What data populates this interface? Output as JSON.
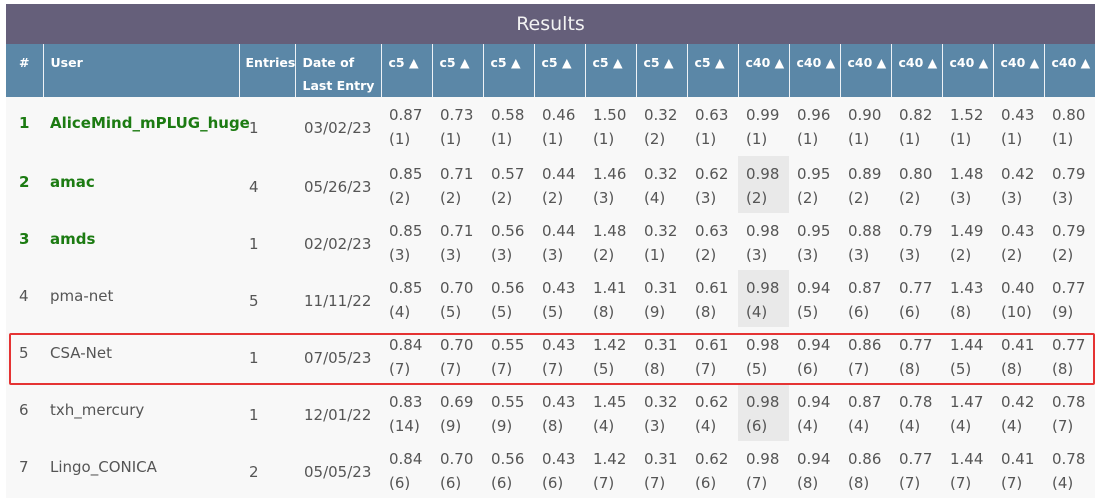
{
  "title": "Results",
  "columns": [
    "#",
    "User",
    "Entries",
    "Date of Last Entry",
    "c5 ▲",
    "c5 ▲",
    "c5 ▲",
    "c5 ▲",
    "c5 ▲",
    "c5 ▲",
    "c5 ▲",
    "c40 ▲",
    "c40 ▲",
    "c40 ▲",
    "c40 ▲",
    "c40 ▲",
    "c40 ▲",
    "c40 ▲"
  ],
  "header": {
    "rank": "#",
    "user": "User",
    "entries": "Entries",
    "date": "Date of Last Entry",
    "metrics": [
      "c5 ▲",
      "c5 ▲",
      "c5 ▲",
      "c5 ▲",
      "c5 ▲",
      "c5 ▲",
      "c5 ▲",
      "c40 ▲",
      "c40 ▲",
      "c40 ▲",
      "c40 ▲",
      "c40 ▲",
      "c40 ▲",
      "c40 ▲"
    ]
  },
  "rows": [
    {
      "rank": "1",
      "user": "AliceMind_mPLUG_huge",
      "entries": "1",
      "date": "03/02/23",
      "top": true,
      "highlight_col": null,
      "scores": [
        "0.87",
        "0.73",
        "0.58",
        "0.46",
        "1.50",
        "0.32",
        "0.63",
        "0.99",
        "0.96",
        "0.90",
        "0.82",
        "1.52",
        "0.43",
        "0.80"
      ],
      "ranks": [
        "(1)",
        "(1)",
        "(1)",
        "(1)",
        "(1)",
        "(2)",
        "(1)",
        "(1)",
        "(1)",
        "(1)",
        "(1)",
        "(1)",
        "(1)",
        "(1)"
      ]
    },
    {
      "rank": "2",
      "user": "amac",
      "entries": "4",
      "date": "05/26/23",
      "top": true,
      "highlight_col": 7,
      "scores": [
        "0.85",
        "0.71",
        "0.57",
        "0.44",
        "1.46",
        "0.32",
        "0.62",
        "0.98",
        "0.95",
        "0.89",
        "0.80",
        "1.48",
        "0.42",
        "0.79"
      ],
      "ranks": [
        "(2)",
        "(2)",
        "(2)",
        "(2)",
        "(3)",
        "(4)",
        "(3)",
        "(2)",
        "(2)",
        "(2)",
        "(2)",
        "(3)",
        "(3)",
        "(3)"
      ]
    },
    {
      "rank": "3",
      "user": "amds",
      "entries": "1",
      "date": "02/02/23",
      "top": true,
      "highlight_col": null,
      "scores": [
        "0.85",
        "0.71",
        "0.56",
        "0.44",
        "1.48",
        "0.32",
        "0.63",
        "0.98",
        "0.95",
        "0.88",
        "0.79",
        "1.49",
        "0.43",
        "0.79"
      ],
      "ranks": [
        "(3)",
        "(3)",
        "(3)",
        "(3)",
        "(2)",
        "(1)",
        "(2)",
        "(3)",
        "(3)",
        "(3)",
        "(3)",
        "(2)",
        "(2)",
        "(2)"
      ]
    },
    {
      "rank": "4",
      "user": "pma-net",
      "entries": "5",
      "date": "11/11/22",
      "top": false,
      "highlight_col": 7,
      "scores": [
        "0.85",
        "0.70",
        "0.56",
        "0.43",
        "1.41",
        "0.31",
        "0.61",
        "0.98",
        "0.94",
        "0.87",
        "0.77",
        "1.43",
        "0.40",
        "0.77"
      ],
      "ranks": [
        "(4)",
        "(5)",
        "(5)",
        "(5)",
        "(8)",
        "(9)",
        "(8)",
        "(4)",
        "(5)",
        "(6)",
        "(6)",
        "(8)",
        "(10)",
        "(9)"
      ]
    },
    {
      "rank": "5",
      "user": "CSA-Net",
      "entries": "1",
      "date": "07/05/23",
      "top": false,
      "highlight_col": null,
      "scores": [
        "0.84",
        "0.70",
        "0.55",
        "0.43",
        "1.42",
        "0.31",
        "0.61",
        "0.98",
        "0.94",
        "0.86",
        "0.77",
        "1.44",
        "0.41",
        "0.77"
      ],
      "ranks": [
        "(7)",
        "(7)",
        "(7)",
        "(7)",
        "(5)",
        "(8)",
        "(7)",
        "(5)",
        "(6)",
        "(7)",
        "(8)",
        "(5)",
        "(8)",
        "(8)"
      ]
    },
    {
      "rank": "6",
      "user": "txh_mercury",
      "entries": "1",
      "date": "12/01/22",
      "top": false,
      "highlight_col": 7,
      "scores": [
        "0.83",
        "0.69",
        "0.55",
        "0.43",
        "1.45",
        "0.32",
        "0.62",
        "0.98",
        "0.94",
        "0.87",
        "0.78",
        "1.47",
        "0.42",
        "0.78"
      ],
      "ranks": [
        "(14)",
        "(9)",
        "(9)",
        "(8)",
        "(4)",
        "(3)",
        "(4)",
        "(6)",
        "(4)",
        "(4)",
        "(4)",
        "(4)",
        "(4)",
        "(7)"
      ]
    },
    {
      "rank": "7",
      "user": "Lingo_CONICA",
      "entries": "2",
      "date": "05/05/23",
      "top": false,
      "highlight_col": null,
      "scores": [
        "0.84",
        "0.70",
        "0.56",
        "0.43",
        "1.42",
        "0.31",
        "0.62",
        "0.98",
        "0.94",
        "0.86",
        "0.77",
        "1.44",
        "0.41",
        "0.78"
      ],
      "ranks": [
        "(6)",
        "(6)",
        "(6)",
        "(6)",
        "(7)",
        "(7)",
        "(6)",
        "(7)",
        "(8)",
        "(8)",
        "(7)",
        "(7)",
        "(7)",
        "(4)"
      ]
    }
  ],
  "colors": {
    "title_bg": "#655f7a",
    "header_bg": "#5b87a7",
    "top_rank_text": "#1c7b12",
    "highlight_box": "#e53333"
  },
  "icons": {
    "sort": "triangle-up-icon"
  }
}
